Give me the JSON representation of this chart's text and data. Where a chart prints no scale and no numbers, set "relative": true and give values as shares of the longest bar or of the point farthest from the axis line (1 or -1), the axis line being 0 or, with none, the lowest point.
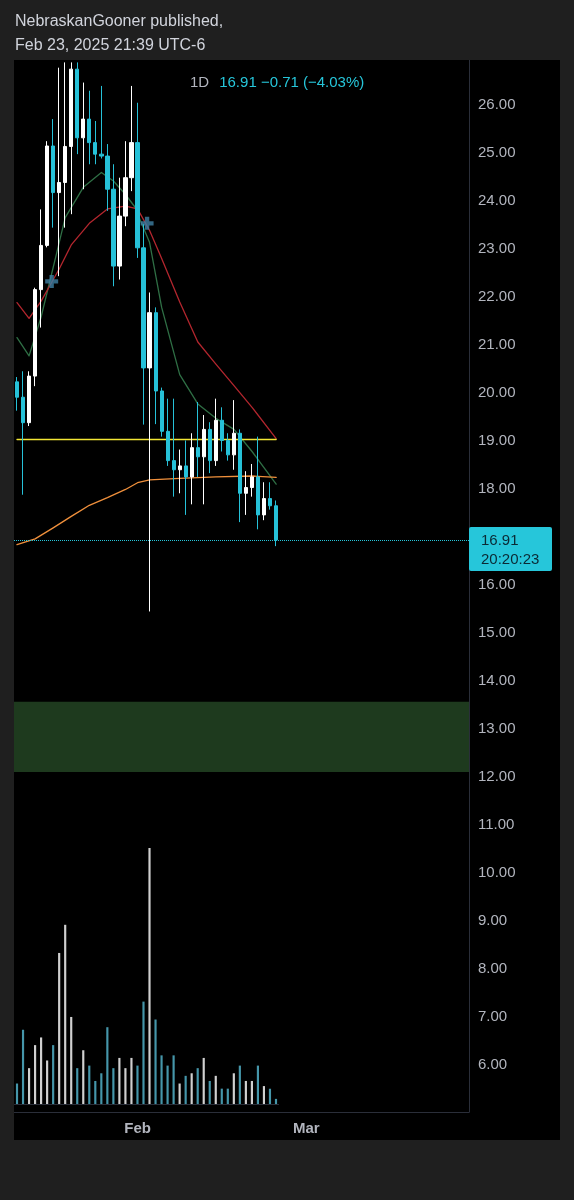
{
  "chart_data": [
    {
      "type": "candlestick",
      "title": "NebraskanGooner published,",
      "subtitle": "Feb 23, 2025 21:39 UTC-6",
      "annotations": [
        "1D",
        "16.91  −0.71 (−4.03%)",
        "20:20:23"
      ],
      "x": [
        "2025-01-12",
        "2025-01-13",
        "2025-01-14",
        "2025-01-15",
        "2025-01-16",
        "2025-01-17",
        "2025-01-18",
        "2025-01-19",
        "2025-01-20",
        "2025-01-21",
        "2025-01-22",
        "2025-01-23",
        "2025-01-24",
        "2025-01-25",
        "2025-01-26",
        "2025-01-27",
        "2025-01-28",
        "2025-01-29",
        "2025-01-30",
        "2025-01-31",
        "2025-02-01",
        "2025-02-02",
        "2025-02-03",
        "2025-02-04",
        "2025-02-05",
        "2025-02-06",
        "2025-02-07",
        "2025-02-08",
        "2025-02-09",
        "2025-02-10",
        "2025-02-11",
        "2025-02-12",
        "2025-02-13",
        "2025-02-14",
        "2025-02-15",
        "2025-02-16",
        "2025-02-17",
        "2025-02-18",
        "2025-02-19",
        "2025-02-20",
        "2025-02-21",
        "2025-02-22",
        "2025-02-23",
        "2025-02-24"
      ],
      "ohlc": [
        [
          20.2,
          20.3,
          19.6,
          19.88
        ],
        [
          19.88,
          20.42,
          17.85,
          19.35
        ],
        [
          19.35,
          20.42,
          19.28,
          20.32
        ],
        [
          20.32,
          22.16,
          20.11,
          22.12
        ],
        [
          22.12,
          23.79,
          21.33,
          23.04
        ],
        [
          23.04,
          25.21,
          23.0,
          25.11
        ],
        [
          25.11,
          25.67,
          23.41,
          24.14
        ],
        [
          24.14,
          26.74,
          22.4,
          24.35
        ],
        [
          24.35,
          26.85,
          23.41,
          25.1
        ],
        [
          25.1,
          26.85,
          23.69,
          26.71
        ],
        [
          26.71,
          26.85,
          24.94,
          25.28
        ],
        [
          25.28,
          26.43,
          24.21,
          25.67
        ],
        [
          25.67,
          26.26,
          24.73,
          25.18
        ],
        [
          25.18,
          25.63,
          24.73,
          24.94
        ],
        [
          24.94,
          26.36,
          24.85,
          24.9
        ],
        [
          24.9,
          25.15,
          23.76,
          24.21
        ],
        [
          24.21,
          24.73,
          22.19,
          22.61
        ],
        [
          22.61,
          24.45,
          22.33,
          23.65
        ],
        [
          23.65,
          25.21,
          23.44,
          24.45
        ],
        [
          24.45,
          26.36,
          24.17,
          25.18
        ],
        [
          25.18,
          26.01,
          22.78,
          22.99
        ],
        [
          22.99,
          23.48,
          19.31,
          20.49
        ],
        [
          20.49,
          22.06,
          15.42,
          21.64
        ],
        [
          21.64,
          21.75,
          19.32,
          20.01
        ],
        [
          20.01,
          20.08,
          19.06,
          19.17
        ],
        [
          19.17,
          19.85,
          18.45,
          18.56
        ],
        [
          18.56,
          19.85,
          17.81,
          18.37
        ],
        [
          18.37,
          18.79,
          17.88,
          18.45
        ],
        [
          18.45,
          18.98,
          17.43,
          18.22
        ],
        [
          18.22,
          19.13,
          17.65,
          18.83
        ],
        [
          18.83,
          19.78,
          18.22,
          18.64
        ],
        [
          18.64,
          19.51,
          17.65,
          19.21
        ],
        [
          19.21,
          19.36,
          18.3,
          18.56
        ],
        [
          18.56,
          19.85,
          18.45,
          19.4
        ],
        [
          19.4,
          19.67,
          18.75,
          18.98
        ],
        [
          18.98,
          19.13,
          18.56,
          18.68
        ],
        [
          18.68,
          19.82,
          18.37,
          19.13
        ],
        [
          19.13,
          19.21,
          17.28,
          17.88
        ],
        [
          17.88,
          18.34,
          17.43,
          18.0
        ],
        [
          18.0,
          18.49,
          17.81,
          18.22
        ],
        [
          18.22,
          19.06,
          17.13,
          17.43
        ],
        [
          17.43,
          18.11,
          17.32,
          17.77
        ],
        [
          17.77,
          18.11,
          17.54,
          17.62
        ],
        [
          17.62,
          17.73,
          16.78,
          16.91
        ]
      ],
      "colors": [
        "#26c1d8",
        "#26c1d8",
        "#ffffff",
        "#ffffff",
        "#ffffff",
        "#ffffff",
        "#26c1d8",
        "#ffffff",
        "#ffffff",
        "#ffffff",
        "#26c1d8",
        "#ffffff",
        "#26c1d8",
        "#26c1d8",
        "#26c1d8",
        "#26c1d8",
        "#26c1d8",
        "#ffffff",
        "#ffffff",
        "#ffffff",
        "#26c1d8",
        "#26c1d8",
        "#ffffff",
        "#26c1d8",
        "#26c1d8",
        "#26c1d8",
        "#26c1d8",
        "#ffffff",
        "#26c1d8",
        "#ffffff",
        "#26c1d8",
        "#ffffff",
        "#26c1d8",
        "#ffffff",
        "#26c1d8",
        "#26c1d8",
        "#ffffff",
        "#26c1d8",
        "#ffffff",
        "#ffffff",
        "#26c1d8",
        "#ffffff",
        "#26c1d8",
        "#26c1d8"
      ],
      "series": [
        {
          "type": "line",
          "color": "#2f6f45",
          "x": [
            "2025-01-12",
            "2025-01-14",
            "2025-01-16",
            "2025-01-18",
            "2025-01-20",
            "2025-01-23",
            "2025-01-26",
            "2025-01-28",
            "2025-01-30",
            "2025-01-31T12:00",
            "2025-02-03",
            "2025-02-05",
            "2025-02-08",
            "2025-02-11",
            "2025-02-14",
            "2025-02-17",
            "2025-02-20",
            "2025-02-24"
          ],
          "values": [
            21.12,
            20.74,
            21.55,
            22.58,
            23.62,
            24.25,
            24.56,
            24.38,
            24.1,
            23.85,
            23.1,
            21.75,
            20.35,
            19.74,
            19.44,
            19.21,
            18.75,
            18.07
          ]
        },
        {
          "type": "line",
          "color": "#b3262e",
          "x": [
            "2025-01-12",
            "2025-01-14",
            "2025-01-16",
            "2025-01-19",
            "2025-01-21",
            "2025-01-24",
            "2025-01-27",
            "2025-01-30",
            "2025-02-01",
            "2025-02-03",
            "2025-02-05",
            "2025-02-08",
            "2025-02-11",
            "2025-02-14",
            "2025-02-17",
            "2025-02-20",
            "2025-02-24"
          ],
          "values": [
            21.85,
            21.52,
            21.88,
            22.55,
            23.05,
            23.5,
            23.8,
            23.86,
            23.8,
            23.35,
            22.77,
            21.86,
            21.03,
            20.57,
            20.12,
            19.67,
            19.02
          ]
        },
        {
          "type": "line",
          "color": "#f0903c",
          "x": [
            "2025-01-12",
            "2025-01-15",
            "2025-01-18",
            "2025-01-21",
            "2025-01-24",
            "2025-01-27",
            "2025-01-30",
            "2025-02-01",
            "2025-02-03",
            "2025-02-08",
            "2025-02-14",
            "2025-02-20",
            "2025-02-24"
          ],
          "values": [
            16.81,
            16.93,
            17.16,
            17.4,
            17.63,
            17.79,
            17.96,
            18.1,
            18.16,
            18.19,
            18.22,
            18.24,
            18.21
          ]
        },
        {
          "type": "line",
          "color": "#f2e635",
          "x": [
            "2025-01-12",
            "2025-02-24"
          ],
          "values": [
            19,
            19
          ]
        },
        {
          "type": "scatter",
          "color": "#3e7fa2",
          "marker": "cross",
          "x": [
            "2025-01-17T18:00",
            "2025-02-02T14:00"
          ],
          "values": [
            22.29,
            23.5
          ]
        }
      ],
      "ref_lines": [
        {
          "axis": "y",
          "value": 16.91,
          "label": "16.91",
          "color": "#26c6da",
          "line_style": "dotted"
        }
      ],
      "bands": [
        {
          "axis": "y",
          "from": 12.08,
          "to": 13.54,
          "color": "#1e3a1e"
        }
      ],
      "xlim": [
        "2025-01-11T12:00",
        "2025-03-28"
      ],
      "xticks": [
        {
          "value": "2025-02-01",
          "label": "Feb"
        },
        {
          "value": "2025-03-01",
          "label": "Mar"
        }
      ],
      "ylim": [
        5,
        26.9
      ],
      "yticks": [
        {
          "value": 6,
          "label": "6.00"
        },
        {
          "value": 7,
          "label": "7.00"
        },
        {
          "value": 8,
          "label": "8.00"
        },
        {
          "value": 9,
          "label": "9.00"
        },
        {
          "value": 10,
          "label": "10.00"
        },
        {
          "value": 11,
          "label": "11.00"
        },
        {
          "value": 12,
          "label": "12.00"
        },
        {
          "value": 13,
          "label": "13.00"
        },
        {
          "value": 14,
          "label": "14.00"
        },
        {
          "value": 15,
          "label": "15.00"
        },
        {
          "value": 16,
          "label": "16.00"
        },
        {
          "value": 18,
          "label": "18.00"
        },
        {
          "value": 19,
          "label": "19.00"
        },
        {
          "value": 20,
          "label": "20.00"
        },
        {
          "value": 21,
          "label": "21.00"
        },
        {
          "value": 22,
          "label": "22.00"
        },
        {
          "value": 23,
          "label": "23.00"
        },
        {
          "value": 24,
          "label": "24.00"
        },
        {
          "value": 25,
          "label": "25.00"
        },
        {
          "value": 26,
          "label": "26.00"
        }
      ]
    },
    {
      "type": "bar",
      "relative": true,
      "categories": [
        null,
        null,
        null,
        null,
        null,
        null,
        null,
        null,
        null,
        null,
        null,
        null,
        null,
        null,
        null,
        null,
        null,
        null,
        null,
        null,
        null,
        null,
        null,
        null,
        null,
        null,
        null,
        null,
        null,
        null,
        null,
        null,
        null,
        null,
        null,
        null,
        null,
        null,
        null,
        null,
        null,
        null,
        null,
        null
      ],
      "values": [
        0.08,
        0.29,
        0.14,
        0.23,
        0.26,
        0.17,
        0.23,
        0.59,
        0.7,
        0.34,
        0.14,
        0.21,
        0.15,
        0.09,
        0.12,
        0.3,
        0.14,
        0.18,
        0.14,
        0.18,
        0.15,
        0.4,
        1,
        0.33,
        0.19,
        0.15,
        0.19,
        0.08,
        0.11,
        0.12,
        0.14,
        0.18,
        0.09,
        0.11,
        0.06,
        0.06,
        0.12,
        0.15,
        0.09,
        0.09,
        0.15,
        0.07,
        0.06,
        0.02
      ],
      "colors": [
        "#4596aa",
        "#4596aa",
        "#d0d0d0",
        "#d0d0d0",
        "#d0d0d0",
        "#d0d0d0",
        "#4596aa",
        "#d0d0d0",
        "#d0d0d0",
        "#d0d0d0",
        "#4596aa",
        "#d0d0d0",
        "#4596aa",
        "#4596aa",
        "#4596aa",
        "#4596aa",
        "#4596aa",
        "#d0d0d0",
        "#d0d0d0",
        "#d0d0d0",
        "#4596aa",
        "#4596aa",
        "#d0d0d0",
        "#4596aa",
        "#4596aa",
        "#4596aa",
        "#4596aa",
        "#d0d0d0",
        "#4596aa",
        "#d0d0d0",
        "#4596aa",
        "#d0d0d0",
        "#4596aa",
        "#d0d0d0",
        "#4596aa",
        "#4596aa",
        "#d0d0d0",
        "#4596aa",
        "#d0d0d0",
        "#d0d0d0",
        "#4596aa",
        "#d0d0d0",
        "#4596aa",
        "#4596aa"
      ]
    }
  ]
}
